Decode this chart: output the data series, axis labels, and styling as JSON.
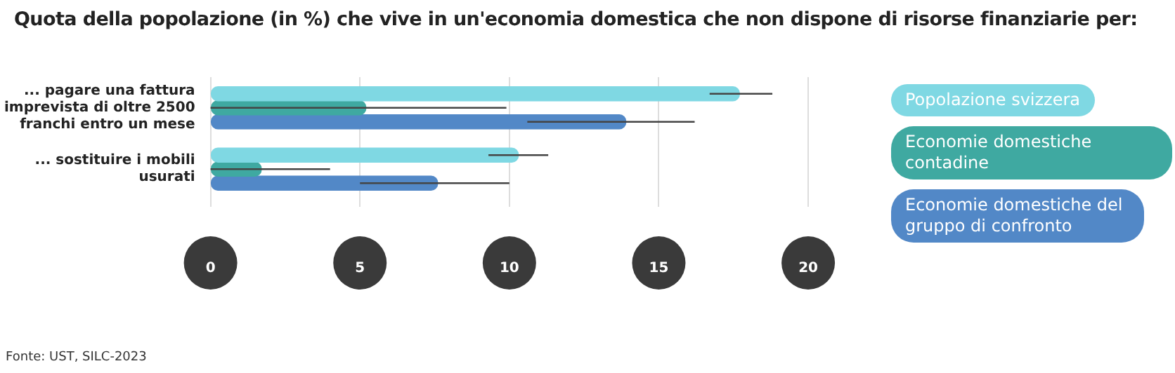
{
  "chart_data": {
    "type": "bar",
    "orientation": "horizontal",
    "title": "Quota della popolazione (in %) che vive in un'economia domestica che non dispone di risorse finanziarie per:",
    "categories": [
      "... pagare una fattura imprevista di oltre 2500 franchi entro un mese",
      "... sostituire i mobili usurati"
    ],
    "series": [
      {
        "name": "Popolazione svizzera",
        "color": "#7fd8e3",
        "values": [
          17.7,
          10.3
        ],
        "errors": [
          [
            16.7,
            18.8
          ],
          [
            9.3,
            11.3
          ]
        ]
      },
      {
        "name": "Economie domestiche contadine",
        "color": "#3fa9a1",
        "values": [
          5.2,
          1.7
        ],
        "errors": [
          [
            0,
            9.9
          ],
          [
            0,
            4.0
          ]
        ]
      },
      {
        "name": "Economie domestiche del gruppo di confronto",
        "color": "#5288c7",
        "values": [
          13.9,
          7.6
        ],
        "errors": [
          [
            10.6,
            16.2
          ],
          [
            5.0,
            10.0
          ]
        ]
      }
    ],
    "xlim": [
      0,
      20
    ],
    "xticks": [
      0,
      5,
      10,
      15,
      20
    ],
    "grid": "x",
    "legend": "right",
    "annotations": [
      "Fonte: UST, SILC-2023"
    ]
  }
}
